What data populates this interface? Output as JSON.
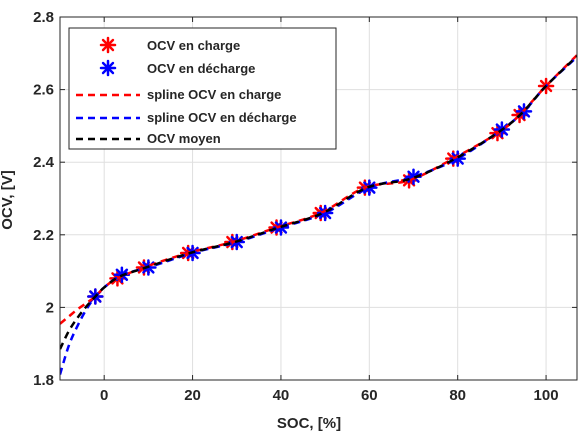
{
  "chart_data": {
    "type": "line",
    "title": "",
    "xlabel": "SOC, [%]",
    "ylabel": "OCV, [V]",
    "xlim": [
      -10,
      107
    ],
    "ylim": [
      1.8,
      2.8
    ],
    "grid": true,
    "legend_position": "top-left",
    "x_ticks": [
      0,
      20,
      40,
      60,
      80,
      100
    ],
    "x_tick_labels": [
      "0",
      "20",
      "40",
      "60",
      "80",
      "100"
    ],
    "y_ticks": [
      1.8,
      2.0,
      2.2,
      2.4,
      2.6,
      2.8
    ],
    "y_tick_labels": [
      "1.8",
      "2",
      "2.2",
      "2.4",
      "2.6",
      "2.8"
    ],
    "series": [
      {
        "name": "OCV en charge",
        "kind": "markers",
        "color": "#ff0000",
        "x": [
          -2,
          3,
          9,
          19,
          29,
          39,
          49,
          59,
          69,
          79,
          89,
          94,
          100
        ],
        "y": [
          2.03,
          2.08,
          2.11,
          2.15,
          2.18,
          2.22,
          2.26,
          2.33,
          2.35,
          2.41,
          2.48,
          2.53,
          2.61
        ]
      },
      {
        "name": "OCV en décharge",
        "kind": "markers",
        "color": "#0000ff",
        "x": [
          -2,
          4,
          10,
          20,
          30,
          40,
          50,
          60,
          70,
          80,
          90,
          95
        ],
        "y": [
          2.03,
          2.09,
          2.11,
          2.15,
          2.18,
          2.22,
          2.26,
          2.33,
          2.36,
          2.41,
          2.49,
          2.54
        ]
      },
      {
        "name": "spline OCV en charge",
        "kind": "dashed-line",
        "color": "#ff0000",
        "x": [
          -10,
          -8,
          -6,
          -4,
          -2,
          0,
          3,
          9,
          19,
          29,
          39,
          49,
          59,
          69,
          79,
          89,
          94,
          100,
          107
        ],
        "y": [
          1.955,
          1.975,
          1.995,
          2.012,
          2.03,
          2.055,
          2.08,
          2.11,
          2.15,
          2.18,
          2.22,
          2.26,
          2.33,
          2.35,
          2.41,
          2.48,
          2.53,
          2.61,
          2.695
        ]
      },
      {
        "name": "spline OCV en décharge",
        "kind": "dashed-line",
        "color": "#0000ff",
        "x": [
          -10,
          -8,
          -6,
          -4,
          -2,
          0,
          4,
          10,
          20,
          30,
          40,
          50,
          60,
          70,
          80,
          90,
          95,
          100,
          107
        ],
        "y": [
          1.815,
          1.895,
          1.95,
          1.995,
          2.03,
          2.055,
          2.09,
          2.11,
          2.15,
          2.18,
          2.22,
          2.26,
          2.33,
          2.36,
          2.41,
          2.49,
          2.54,
          2.61,
          2.69
        ]
      },
      {
        "name": "OCV moyen",
        "kind": "dashed-line",
        "color": "#000000",
        "x": [
          -10,
          -8,
          -6,
          -4,
          -2,
          0,
          3.5,
          9.5,
          19.5,
          29.5,
          39.5,
          49.5,
          59.5,
          69.5,
          79.5,
          89.5,
          94.5,
          100,
          107
        ],
        "y": [
          1.885,
          1.935,
          1.972,
          2.003,
          2.03,
          2.055,
          2.085,
          2.11,
          2.15,
          2.18,
          2.22,
          2.26,
          2.33,
          2.355,
          2.41,
          2.485,
          2.535,
          2.61,
          2.692
        ]
      }
    ]
  }
}
